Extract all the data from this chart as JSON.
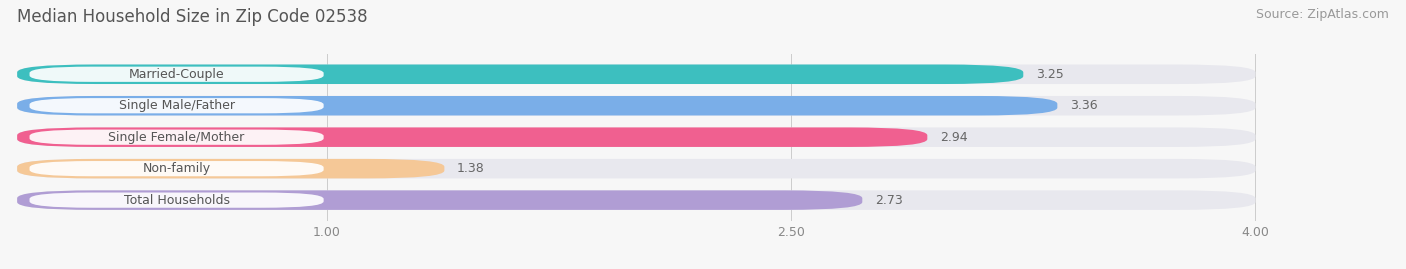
{
  "title": "Median Household Size in Zip Code 02538",
  "source": "Source: ZipAtlas.com",
  "categories": [
    "Married-Couple",
    "Single Male/Father",
    "Single Female/Mother",
    "Non-family",
    "Total Households"
  ],
  "values": [
    3.25,
    3.36,
    2.94,
    1.38,
    2.73
  ],
  "bar_colors": [
    "#3DBFBF",
    "#7AAEE8",
    "#F06090",
    "#F5C897",
    "#B09DD4"
  ],
  "xmin": 0.0,
  "xmax": 4.0,
  "xticks": [
    1.0,
    2.5,
    4.0
  ],
  "bar_height": 0.62,
  "background_color": "#f7f7f7",
  "label_bg_color": "#ffffff",
  "label_color": "#555555",
  "value_color_dark": "#666666",
  "title_fontsize": 12,
  "source_fontsize": 9,
  "tick_fontsize": 9,
  "label_fontsize": 9
}
